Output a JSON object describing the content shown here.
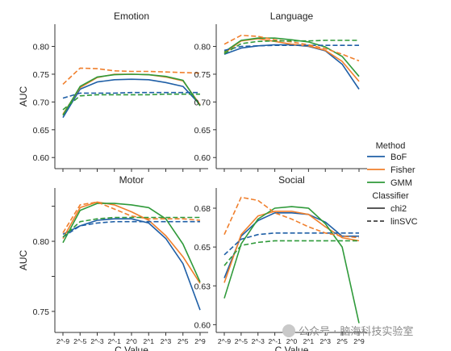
{
  "legend": {
    "method_title": "Method",
    "methods": [
      {
        "label": "BoF",
        "color": "#1f5fa6"
      },
      {
        "label": "Fisher",
        "color": "#f07f2c"
      },
      {
        "label": "GMM",
        "color": "#2f9a3a"
      }
    ],
    "classifier_title": "Classifier",
    "classifiers": [
      {
        "label": "chi2",
        "style": "solid"
      },
      {
        "label": "linSVC",
        "style": "dashed"
      }
    ]
  },
  "watermark": "公众号 · 脑海科技实验室",
  "chart_data": [
    {
      "type": "line",
      "title": "Emotion",
      "ylabel": "AUC",
      "xlabel": "",
      "x": [
        "2^-9",
        "2^-5",
        "2^-3",
        "2^-1",
        "2^0",
        "2^1",
        "2^3",
        "2^5",
        "2^9"
      ],
      "ylim": [
        0.58,
        0.84
      ],
      "yticks": [
        0.6,
        0.65,
        0.7,
        0.75,
        0.8
      ],
      "show_xticks": false,
      "show_ylabel": true,
      "series": [
        {
          "method": "BoF",
          "classifier": "chi2",
          "values": [
            0.672,
            0.723,
            0.736,
            0.74,
            0.741,
            0.74,
            0.735,
            0.728,
            0.695
          ]
        },
        {
          "method": "Fisher",
          "classifier": "chi2",
          "values": [
            0.678,
            0.726,
            0.744,
            0.75,
            0.75,
            0.749,
            0.745,
            0.738,
            0.695
          ]
        },
        {
          "method": "GMM",
          "classifier": "chi2",
          "values": [
            0.676,
            0.728,
            0.745,
            0.749,
            0.75,
            0.749,
            0.746,
            0.739,
            0.693
          ]
        },
        {
          "method": "BoF",
          "classifier": "linSVC",
          "values": [
            0.707,
            0.716,
            0.716,
            0.716,
            0.717,
            0.717,
            0.717,
            0.717,
            0.717
          ]
        },
        {
          "method": "Fisher",
          "classifier": "linSVC",
          "values": [
            0.732,
            0.761,
            0.76,
            0.756,
            0.755,
            0.755,
            0.754,
            0.753,
            0.752
          ]
        },
        {
          "method": "GMM",
          "classifier": "linSVC",
          "values": [
            0.686,
            0.711,
            0.713,
            0.713,
            0.713,
            0.713,
            0.714,
            0.714,
            0.714
          ]
        }
      ]
    },
    {
      "type": "line",
      "title": "Language",
      "ylabel": "",
      "xlabel": "",
      "x": [
        "2^-9",
        "2^-5",
        "2^-3",
        "2^-1",
        "2^0",
        "2^1",
        "2^3",
        "2^5",
        "2^9"
      ],
      "ylim": [
        0.58,
        0.84
      ],
      "yticks": [
        0.6,
        0.65,
        0.7,
        0.75,
        0.8
      ],
      "show_xticks": false,
      "show_ylabel": false,
      "series": [
        {
          "method": "BoF",
          "classifier": "chi2",
          "values": [
            0.786,
            0.797,
            0.801,
            0.803,
            0.803,
            0.8,
            0.792,
            0.768,
            0.723
          ]
        },
        {
          "method": "Fisher",
          "classifier": "chi2",
          "values": [
            0.788,
            0.81,
            0.814,
            0.809,
            0.804,
            0.801,
            0.793,
            0.773,
            0.737
          ]
        },
        {
          "method": "GMM",
          "classifier": "chi2",
          "values": [
            0.79,
            0.811,
            0.815,
            0.815,
            0.812,
            0.808,
            0.799,
            0.782,
            0.746
          ]
        },
        {
          "method": "BoF",
          "classifier": "linSVC",
          "values": [
            0.793,
            0.8,
            0.801,
            0.802,
            0.802,
            0.802,
            0.802,
            0.802,
            0.802
          ]
        },
        {
          "method": "Fisher",
          "classifier": "linSVC",
          "values": [
            0.804,
            0.82,
            0.818,
            0.812,
            0.808,
            0.803,
            0.796,
            0.786,
            0.774
          ]
        },
        {
          "method": "GMM",
          "classifier": "linSVC",
          "values": [
            0.787,
            0.805,
            0.809,
            0.81,
            0.81,
            0.81,
            0.811,
            0.811,
            0.811
          ]
        }
      ]
    },
    {
      "type": "line",
      "title": "Motor",
      "ylabel": "AUC",
      "xlabel": "C Value",
      "x": [
        "2^-9",
        "2^-5",
        "2^-3",
        "2^-1",
        "2^0",
        "2^1",
        "2^3",
        "2^5",
        "2^9"
      ],
      "ylim": [
        0.735,
        0.838
      ],
      "yticks": [
        0.75,
        0.775,
        0.8,
        0.825
      ],
      "yticklabels": [
        "0.75",
        "",
        "0.80",
        ""
      ],
      "show_xticks": true,
      "show_ylabel": true,
      "series": [
        {
          "method": "BoF",
          "classifier": "chi2",
          "values": [
            0.805,
            0.811,
            0.815,
            0.816,
            0.816,
            0.813,
            0.802,
            0.784,
            0.751
          ]
        },
        {
          "method": "Fisher",
          "classifier": "chi2",
          "values": [
            0.802,
            0.824,
            0.828,
            0.826,
            0.821,
            0.815,
            0.804,
            0.789,
            0.77
          ]
        },
        {
          "method": "GMM",
          "classifier": "chi2",
          "values": [
            0.799,
            0.822,
            0.827,
            0.827,
            0.826,
            0.824,
            0.816,
            0.798,
            0.771
          ]
        },
        {
          "method": "BoF",
          "classifier": "linSVC",
          "values": [
            0.803,
            0.811,
            0.813,
            0.814,
            0.814,
            0.814,
            0.814,
            0.814,
            0.814
          ]
        },
        {
          "method": "Fisher",
          "classifier": "linSVC",
          "values": [
            0.806,
            0.826,
            0.828,
            0.823,
            0.818,
            0.816,
            0.816,
            0.816,
            0.815
          ]
        },
        {
          "method": "GMM",
          "classifier": "linSVC",
          "values": [
            0.803,
            0.814,
            0.816,
            0.817,
            0.817,
            0.817,
            0.817,
            0.817,
            0.817
          ]
        }
      ]
    },
    {
      "type": "line",
      "title": "Social",
      "ylabel": "",
      "xlabel": "C Value",
      "x": [
        "2^-9",
        "2^-5",
        "2^-3",
        "2^-1",
        "2^0",
        "2^1",
        "2^3",
        "2^5",
        "2^9"
      ],
      "ylim": [
        0.595,
        0.688
      ],
      "yticks": [
        0.6,
        0.625,
        0.65,
        0.675
      ],
      "show_xticks": true,
      "show_ylabel": false,
      "series": [
        {
          "method": "BoF",
          "classifier": "chi2",
          "values": [
            0.63,
            0.657,
            0.667,
            0.672,
            0.672,
            0.671,
            0.666,
            0.657,
            0.657
          ]
        },
        {
          "method": "Fisher",
          "classifier": "chi2",
          "values": [
            0.627,
            0.658,
            0.67,
            0.673,
            0.673,
            0.671,
            0.663,
            0.656,
            0.654
          ]
        },
        {
          "method": "GMM",
          "classifier": "chi2",
          "values": [
            0.617,
            0.652,
            0.668,
            0.675,
            0.676,
            0.675,
            0.665,
            0.65,
            0.601
          ]
        },
        {
          "method": "BoF",
          "classifier": "linSVC",
          "values": [
            0.645,
            0.655,
            0.658,
            0.659,
            0.659,
            0.659,
            0.659,
            0.659,
            0.659
          ]
        },
        {
          "method": "Fisher",
          "classifier": "linSVC",
          "values": [
            0.658,
            0.682,
            0.68,
            0.672,
            0.668,
            0.663,
            0.659,
            0.657,
            0.656
          ]
        },
        {
          "method": "GMM",
          "classifier": "linSVC",
          "values": [
            0.638,
            0.651,
            0.653,
            0.654,
            0.654,
            0.654,
            0.654,
            0.654,
            0.654
          ]
        }
      ]
    }
  ]
}
